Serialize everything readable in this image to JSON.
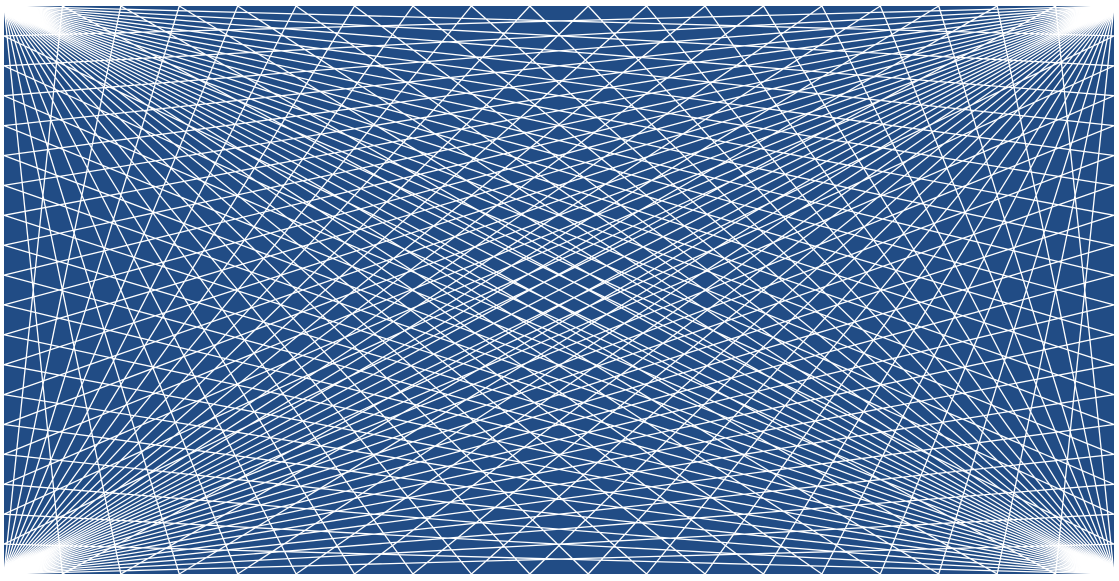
{
  "artwork": {
    "style": "string-art envelope of straight lines joining corners to points on opposite edges",
    "background_color": "#214c85",
    "frame_color": "#ffffff",
    "line_color": "#ffffff",
    "fans_per_corner": 2,
    "lines_per_fan": 18
  }
}
